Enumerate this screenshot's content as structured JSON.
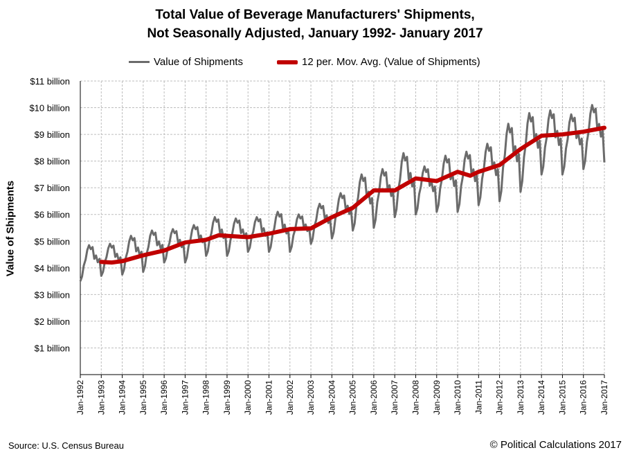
{
  "chart_data": {
    "type": "line",
    "title_line1": "Total Value of Beverage Manufacturers' Shipments,",
    "title_line2": "Not Seasonally Adjusted,  January 1992- January 2017",
    "ylabel": "Value of Shipments",
    "xlabel": "",
    "ylim": [
      0,
      11
    ],
    "y_unit": "billion USD",
    "y_ticks": [
      "$1 billion",
      "$2 billion",
      "$3 billion",
      "$4 billion",
      "$5 billion",
      "$6 billion",
      "$7 billion",
      "$8 billion",
      "$9 billion",
      "$10 billion",
      "$11 billion"
    ],
    "x_ticks": [
      "Jan-1992",
      "Jan-1993",
      "Jan-1994",
      "Jan-1995",
      "Jan-1996",
      "Jan-1997",
      "Jan-1998",
      "Jan-1999",
      "Jan-2000",
      "Jan-2001",
      "Jan-2002",
      "Jan-2003",
      "Jan-2004",
      "Jan-2005",
      "Jan-2006",
      "Jan-2007",
      "Jan-2008",
      "Jan-2009",
      "Jan-2010",
      "Jan-2011",
      "Jan-2012",
      "Jan-2013",
      "Jan-2014",
      "Jan-2015",
      "Jan-2016",
      "Jan-2017"
    ],
    "grid": true,
    "legend_position": "top",
    "series": [
      {
        "name": "Value of Shipments",
        "color": "#6b6b6b",
        "annual_profile": {
          "start_year": 1992,
          "jan": [
            3.5,
            3.7,
            3.75,
            3.85,
            4.2,
            4.2,
            4.45,
            4.45,
            4.6,
            4.6,
            4.6,
            4.9,
            5.1,
            5.4,
            5.5,
            5.9,
            6.0,
            6.1,
            6.1,
            6.35,
            6.5,
            6.85,
            7.5,
            7.5,
            7.7,
            7.95
          ],
          "peak": [
            4.85,
            4.9,
            5.2,
            5.4,
            5.45,
            5.6,
            5.9,
            5.85,
            5.9,
            6.1,
            6.0,
            6.4,
            6.8,
            7.5,
            7.7,
            8.3,
            7.8,
            8.2,
            8.35,
            8.65,
            9.4,
            9.8,
            9.9,
            9.75,
            10.1
          ],
          "seasonal_shape": [
            0.0,
            0.12,
            0.42,
            0.58,
            0.86,
            1.0,
            0.88,
            0.94,
            0.58,
            0.68,
            0.46,
            0.56
          ]
        }
      },
      {
        "name": "12 per. Mov. Avg. (Value of Shipments)",
        "color": "#c00000",
        "points": [
          {
            "x": 1993.0,
            "y": 4.22
          },
          {
            "x": 1993.5,
            "y": 4.2
          },
          {
            "x": 1994.0,
            "y": 4.25
          },
          {
            "x": 1995.0,
            "y": 4.47
          },
          {
            "x": 1996.0,
            "y": 4.65
          },
          {
            "x": 1997.0,
            "y": 4.95
          },
          {
            "x": 1998.0,
            "y": 5.05
          },
          {
            "x": 1998.6,
            "y": 5.22
          },
          {
            "x": 1999.0,
            "y": 5.2
          },
          {
            "x": 2000.0,
            "y": 5.15
          },
          {
            "x": 2001.0,
            "y": 5.28
          },
          {
            "x": 2002.0,
            "y": 5.45
          },
          {
            "x": 2003.0,
            "y": 5.48
          },
          {
            "x": 2004.0,
            "y": 5.9
          },
          {
            "x": 2005.0,
            "y": 6.25
          },
          {
            "x": 2006.0,
            "y": 6.9
          },
          {
            "x": 2007.0,
            "y": 6.9
          },
          {
            "x": 2008.0,
            "y": 7.35
          },
          {
            "x": 2009.0,
            "y": 7.25
          },
          {
            "x": 2010.0,
            "y": 7.6
          },
          {
            "x": 2010.6,
            "y": 7.45
          },
          {
            "x": 2011.0,
            "y": 7.6
          },
          {
            "x": 2012.0,
            "y": 7.85
          },
          {
            "x": 2013.0,
            "y": 8.45
          },
          {
            "x": 2014.0,
            "y": 8.95
          },
          {
            "x": 2015.0,
            "y": 9.0
          },
          {
            "x": 2016.0,
            "y": 9.1
          },
          {
            "x": 2017.0,
            "y": 9.25
          }
        ]
      }
    ],
    "x_range": [
      1992,
      2017
    ]
  },
  "footer": {
    "source": "Source: U.S. Census Bureau",
    "credit": "© Political Calculations 2017"
  }
}
